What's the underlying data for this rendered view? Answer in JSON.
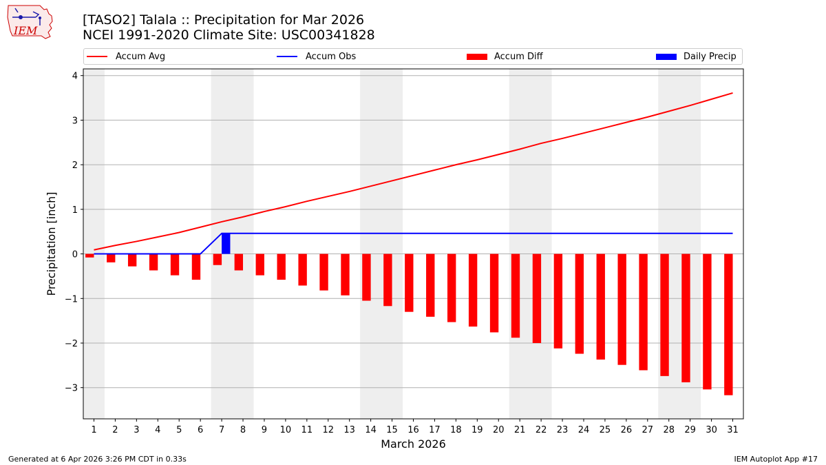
{
  "titles": {
    "line1": "[TASO2] Talala :: Precipitation for Mar 2026",
    "line2": "NCEI 1991-2020 Climate Site: USC00341828"
  },
  "footer": {
    "left": "Generated at 6 Apr 2026 3:26 PM CDT in 0.33s",
    "right": "IEM Autoplot App #17"
  },
  "logo": {
    "text": "IEM",
    "color": "#cc0000"
  },
  "colors": {
    "avg": "#ff0000",
    "obs": "#0000ff",
    "diff": "#ff0000",
    "daily": "#0000ff",
    "weekend": "#eeeeee",
    "grid": "#b0b0b0"
  },
  "chart_data": {
    "type": "bar",
    "xlabel": "March 2026",
    "ylabel": "Precipitation [inch]",
    "ylim": [
      -3.7,
      4.15
    ],
    "yticks": [
      4,
      3,
      2,
      1,
      0,
      -1,
      -2,
      -3
    ],
    "ytick_labels": [
      "4",
      "3",
      "2",
      "1",
      "0",
      "−1",
      "−2",
      "−3"
    ],
    "xlim": [
      0.5,
      31.5
    ],
    "days": [
      1,
      2,
      3,
      4,
      5,
      6,
      7,
      8,
      9,
      10,
      11,
      12,
      13,
      14,
      15,
      16,
      17,
      18,
      19,
      20,
      21,
      22,
      23,
      24,
      25,
      26,
      27,
      28,
      29,
      30,
      31
    ],
    "weekend_spans": [
      [
        0.5,
        1.5
      ],
      [
        6.5,
        8.5
      ],
      [
        13.5,
        15.5
      ],
      [
        20.5,
        22.5
      ],
      [
        27.5,
        29.5
      ]
    ],
    "grid": "horizontal",
    "legend_position": "top",
    "series": [
      {
        "name": "Accum Avg",
        "kind": "line",
        "values": [
          0.09,
          0.19,
          0.28,
          0.38,
          0.48,
          0.6,
          0.72,
          0.83,
          0.95,
          1.06,
          1.18,
          1.29,
          1.4,
          1.52,
          1.64,
          1.76,
          1.88,
          2.0,
          2.11,
          2.23,
          2.35,
          2.48,
          2.59,
          2.71,
          2.83,
          2.95,
          3.07,
          3.2,
          3.33,
          3.47,
          3.61
        ]
      },
      {
        "name": "Accum Obs",
        "kind": "line",
        "values": [
          0,
          0,
          0,
          0,
          0,
          0,
          0.46,
          0.46,
          0.46,
          0.46,
          0.46,
          0.46,
          0.46,
          0.46,
          0.46,
          0.46,
          0.46,
          0.46,
          0.46,
          0.46,
          0.46,
          0.46,
          0.46,
          0.46,
          0.46,
          0.46,
          0.46,
          0.46,
          0.46,
          0.46,
          0.46
        ]
      },
      {
        "name": "Accum Diff",
        "kind": "bar",
        "values": [
          -0.08,
          -0.19,
          -0.28,
          -0.37,
          -0.48,
          -0.58,
          -0.25,
          -0.37,
          -0.48,
          -0.58,
          -0.71,
          -0.82,
          -0.93,
          -1.05,
          -1.17,
          -1.3,
          -1.41,
          -1.53,
          -1.63,
          -1.76,
          -1.88,
          -2.0,
          -2.12,
          -2.24,
          -2.37,
          -2.49,
          -2.61,
          -2.74,
          -2.88,
          -3.04,
          -3.17
        ]
      },
      {
        "name": "Daily Precip",
        "kind": "bar",
        "values": [
          0,
          0,
          0,
          0,
          0,
          0,
          0.46,
          0,
          0,
          0,
          0,
          0,
          0,
          0,
          0,
          0,
          0,
          0,
          0,
          0,
          0,
          0,
          0,
          0,
          0,
          0,
          0,
          0,
          0,
          0,
          0
        ]
      }
    ]
  }
}
